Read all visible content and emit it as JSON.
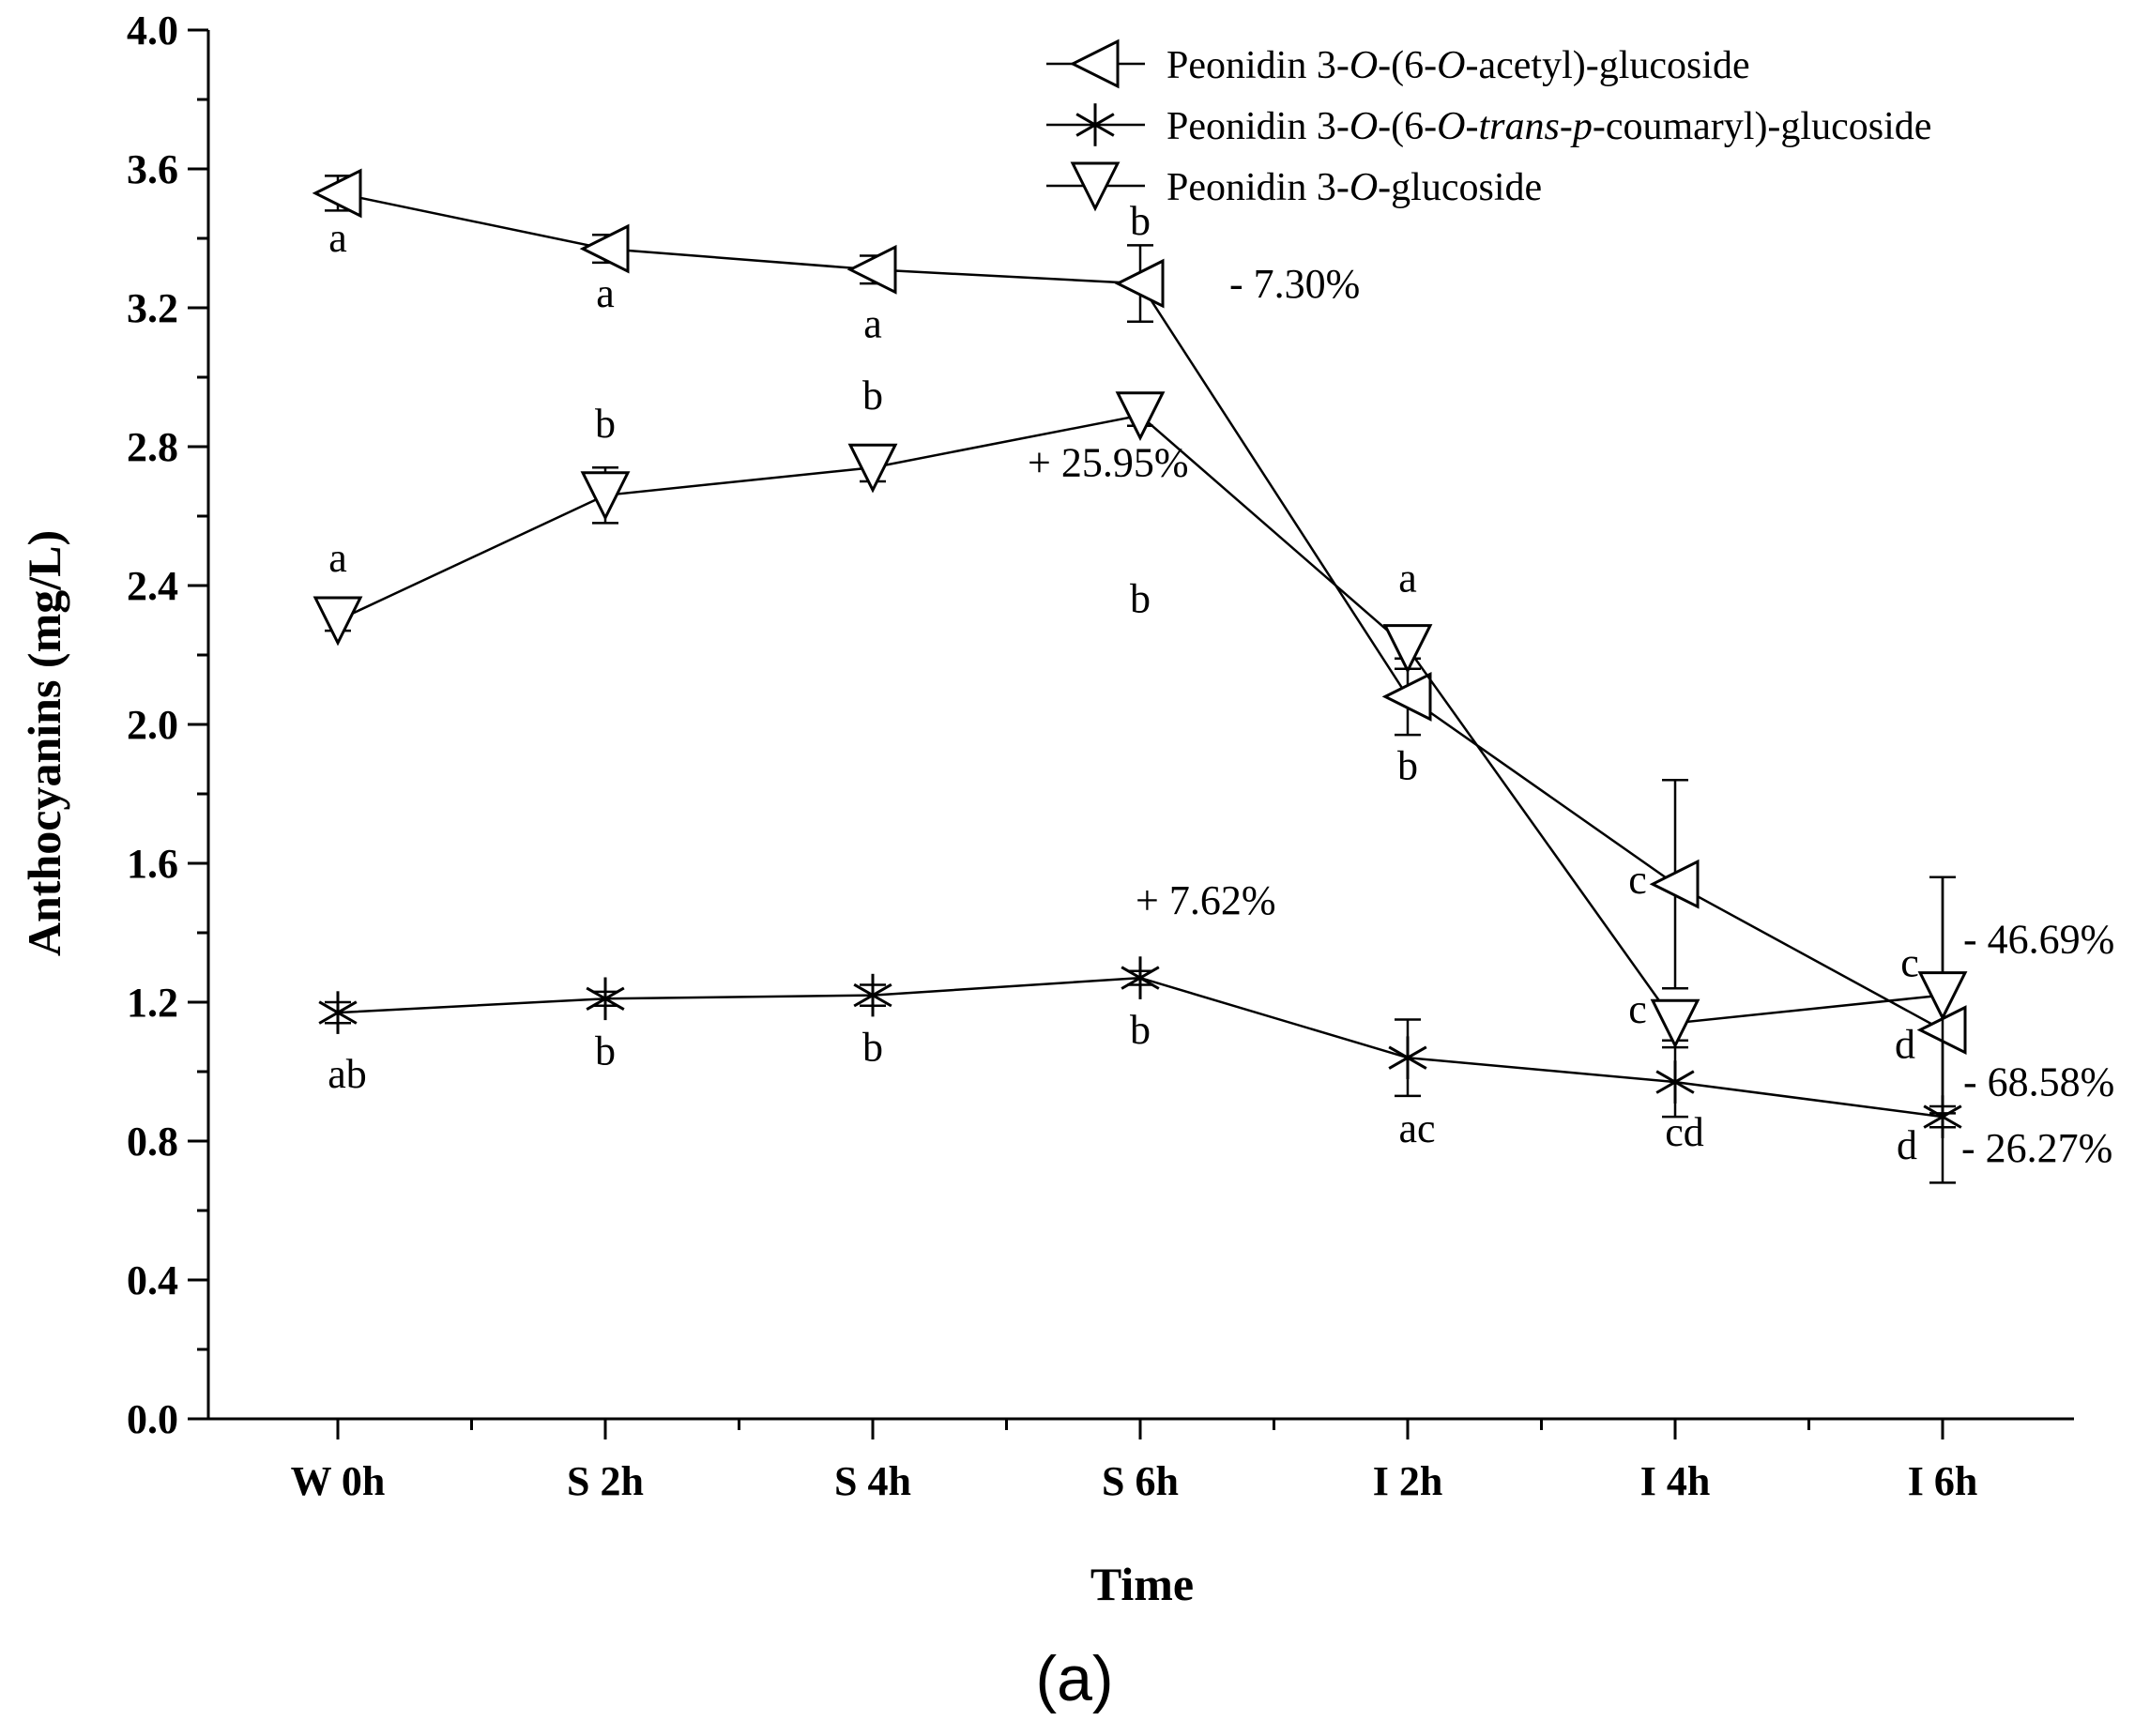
{
  "chart_data": {
    "type": "line",
    "xlabel": "Time",
    "ylabel": "Anthocyanins  (mg/L)",
    "ylim": [
      0.0,
      4.0
    ],
    "yticks": [
      "0.0",
      "0.4",
      "0.8",
      "1.2",
      "1.6",
      "2.0",
      "2.4",
      "2.8",
      "3.2",
      "3.6",
      "4.0"
    ],
    "categories": [
      "W 0h",
      "S 2h",
      "S 4h",
      "S 6h",
      "I 2h",
      "I 4h",
      "I 6h"
    ],
    "panel_label": "(a)",
    "legend_position": "top-right",
    "series": [
      {
        "name": "Peonidin 3-O-(6-O-acetyl)-glucoside",
        "legend_parts": [
          {
            "text": "Peonidin 3-",
            "italic": false
          },
          {
            "text": "O",
            "italic": true
          },
          {
            "text": "-(6-",
            "italic": false
          },
          {
            "text": "O",
            "italic": true
          },
          {
            "text": "-acetyl)-glucoside",
            "italic": false
          }
        ],
        "marker": "triangle-left",
        "values": [
          3.53,
          3.37,
          3.31,
          3.27,
          2.08,
          1.54,
          1.12
        ],
        "errors": [
          0.05,
          0.04,
          0.04,
          0.11,
          0.11,
          0.3,
          0.44
        ],
        "letters": [
          "a",
          "a",
          "a",
          "b",
          "b",
          "c",
          "d"
        ],
        "change_label": {
          "at": 3,
          "text": "- 7.30%"
        },
        "change_label_2": {
          "at": 6,
          "text": "- 68.58%"
        }
      },
      {
        "name": "Peonidin 3-O-(6-O-trans-p-coumaryl)-glucoside",
        "legend_parts": [
          {
            "text": "Peonidin 3-",
            "italic": false
          },
          {
            "text": "O",
            "italic": true
          },
          {
            "text": "-(6-",
            "italic": false
          },
          {
            "text": "O",
            "italic": true
          },
          {
            "text": "-",
            "italic": false
          },
          {
            "text": "trans",
            "italic": true
          },
          {
            "text": "-",
            "italic": false
          },
          {
            "text": "p",
            "italic": true
          },
          {
            "text": "-coumaryl)-glucoside",
            "italic": false
          }
        ],
        "marker": "asterisk",
        "values": [
          1.17,
          1.21,
          1.22,
          1.27,
          1.04,
          0.97,
          0.87
        ],
        "errors": [
          0.03,
          0.02,
          0.03,
          0.02,
          0.11,
          0.1,
          0.03
        ],
        "letters": [
          "ab",
          "b",
          "b",
          "b",
          "ac",
          "cd",
          "d"
        ],
        "change_label": {
          "at": 3,
          "text": "+ 7.62%"
        },
        "change_label_2": {
          "at": 6,
          "text": "- 26.27%"
        }
      },
      {
        "name": "Peonidin 3-O-glucoside",
        "legend_parts": [
          {
            "text": "Peonidin 3-",
            "italic": false
          },
          {
            "text": "O",
            "italic": true
          },
          {
            "text": "-glucoside",
            "italic": false
          }
        ],
        "marker": "triangle-down",
        "values": [
          2.3,
          2.66,
          2.74,
          2.89,
          2.22,
          1.14,
          1.22
        ],
        "errors": [
          0.03,
          0.08,
          0.04,
          0.03,
          0.06,
          0.05,
          0.34
        ],
        "letters": [
          "a",
          "b",
          "b",
          "b",
          "a",
          "c",
          "c"
        ],
        "change_label": {
          "at": 3,
          "text": "+ 25.95%"
        },
        "change_label_2": {
          "at": 6,
          "text": "- 46.69%"
        }
      }
    ]
  }
}
